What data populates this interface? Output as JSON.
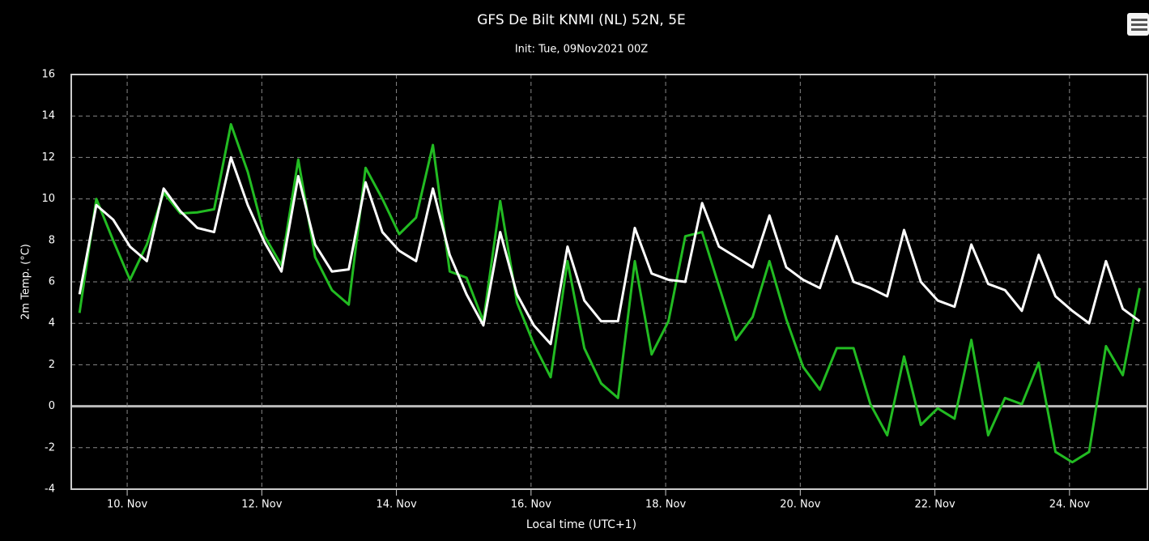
{
  "chart_data": {
    "type": "line",
    "title": "GFS De Bilt KNMI (NL) 52N, 5E",
    "subtitle": "Init: Tue, 09Nov2021 00Z",
    "y_label": "2m Temp. (°C)",
    "x_label": "Local time (UTC+1)",
    "x": [
      9.2917,
      9.5417,
      9.7917,
      10.0417,
      10.2917,
      10.5417,
      10.7917,
      11.0417,
      11.2917,
      11.5417,
      11.7917,
      12.0417,
      12.2917,
      12.5417,
      12.7917,
      13.0417,
      13.2917,
      13.5417,
      13.7917,
      14.0417,
      14.2917,
      14.5417,
      14.7917,
      15.0417,
      15.2917,
      15.5417,
      15.7917,
      16.0417,
      16.2917,
      16.5417,
      16.7917,
      17.0417,
      17.2917,
      17.5417,
      17.7917,
      18.0417,
      18.2917,
      18.5417,
      18.7917,
      19.0417,
      19.2917,
      19.5417,
      19.7917,
      20.0417,
      20.2917,
      20.5417,
      20.7917,
      21.0417,
      21.2917,
      21.5417,
      21.7917,
      22.0417,
      22.2917,
      22.5417,
      22.7917,
      23.0417,
      23.2917,
      23.5417,
      23.7917,
      24.0417,
      24.2917,
      24.5417,
      24.7917,
      25.0417
    ],
    "series": [
      {
        "color": "#ffffff",
        "values": [
          5.4,
          9.7,
          9.0,
          7.7,
          7.0,
          10.5,
          9.4,
          8.6,
          8.4,
          12.0,
          9.7,
          7.9,
          6.5,
          11.1,
          7.8,
          6.5,
          6.6,
          10.8,
          8.4,
          7.5,
          7.0,
          10.5,
          7.3,
          5.4,
          3.9,
          8.4,
          5.4,
          3.9,
          3.0,
          7.7,
          5.1,
          4.1,
          4.1,
          8.6,
          6.4,
          6.1,
          6.0,
          9.8,
          7.7,
          7.2,
          6.7,
          9.2,
          6.7,
          6.1,
          5.7,
          8.2,
          6.0,
          5.7,
          5.3,
          8.5,
          6.0,
          5.1,
          4.8,
          7.8,
          5.9,
          5.6,
          4.6,
          7.3,
          5.3,
          4.6,
          4.0,
          7.0,
          4.7,
          4.1
        ]
      },
      {
        "color": "#22bb22",
        "values": [
          4.5,
          10.0,
          8.0,
          6.1,
          7.8,
          10.3,
          9.3,
          9.35,
          9.5,
          13.6,
          11.3,
          8.2,
          6.8,
          11.9,
          7.2,
          5.6,
          4.9,
          11.5,
          10.0,
          8.3,
          9.1,
          12.6,
          6.5,
          6.2,
          4.1,
          9.9,
          5.0,
          3.0,
          1.4,
          7.0,
          2.8,
          1.1,
          0.4,
          7.0,
          2.5,
          4.1,
          8.2,
          8.4,
          5.8,
          3.2,
          4.3,
          7.0,
          4.2,
          1.9,
          0.8,
          2.8,
          2.8,
          0.1,
          -1.4,
          2.4,
          -0.9,
          -0.1,
          -0.6,
          3.2,
          -1.4,
          0.4,
          0.1,
          2.1,
          -2.2,
          -2.7,
          -2.2,
          2.9,
          1.5,
          5.7
        ]
      }
    ],
    "xlim": [
      9.169,
      25.157
    ],
    "xticks": [
      {
        "value": 10,
        "label": "10. Nov"
      },
      {
        "value": 12,
        "label": "12. Nov"
      },
      {
        "value": 14,
        "label": "14. Nov"
      },
      {
        "value": 16,
        "label": "16. Nov"
      },
      {
        "value": 18,
        "label": "18. Nov"
      },
      {
        "value": 20,
        "label": "20. Nov"
      },
      {
        "value": 22,
        "label": "22. Nov"
      },
      {
        "value": 24,
        "label": "24. Nov"
      }
    ],
    "ylim": [
      -4,
      16
    ],
    "yticks": [
      -4,
      -2,
      0,
      2,
      4,
      6,
      8,
      10,
      12,
      14,
      16
    ],
    "grid": true
  }
}
